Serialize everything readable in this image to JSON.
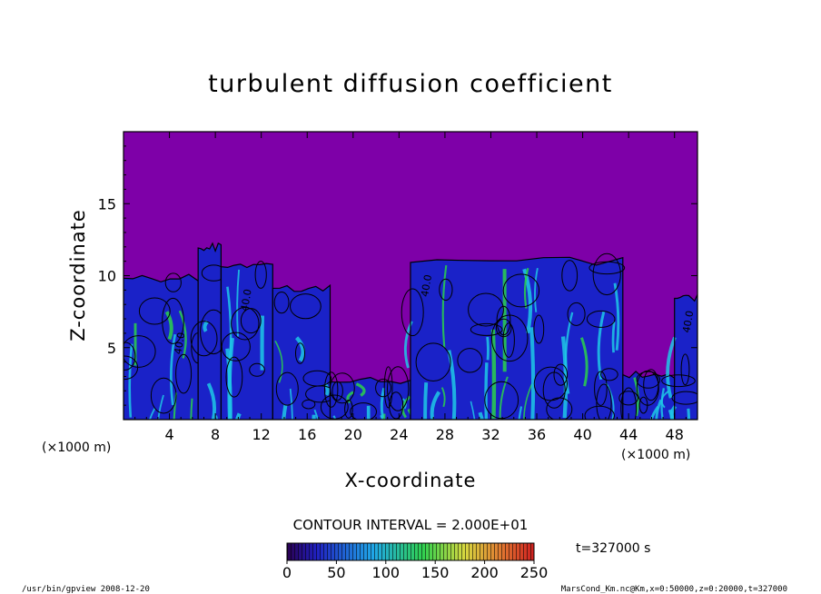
{
  "chart_data": {
    "type": "heatmap",
    "title": "turbulent diffusion coefficient",
    "xlabel": "X-coordinate",
    "ylabel": "Z-coordinate",
    "x_unit": "(×1000 m)",
    "y_unit": "(×1000 m)",
    "xlim": [
      0,
      50
    ],
    "ylim": [
      0,
      20
    ],
    "x_ticks": [
      "4",
      "8",
      "12",
      "16",
      "20",
      "24",
      "28",
      "32",
      "36",
      "40",
      "44",
      "48"
    ],
    "x_tick_values": [
      4,
      8,
      12,
      16,
      20,
      24,
      28,
      32,
      36,
      40,
      44,
      48
    ],
    "y_ticks": [
      "5",
      "10",
      "15"
    ],
    "y_tick_values": [
      5,
      10,
      15
    ],
    "background_value": 0,
    "contour_interval_text": "CONTOUR INTERVAL = 2.000E+01",
    "contour_labels": [
      {
        "text": "40.0",
        "x": 5.0,
        "z": 4.5
      },
      {
        "text": "40.0",
        "x": 10.8,
        "z": 7.5
      },
      {
        "text": "40.0",
        "x": 26.5,
        "z": 8.5
      },
      {
        "text": "40.0",
        "x": 49.3,
        "z": 6.0
      }
    ],
    "turbulent_regions": [
      {
        "x0": 0.0,
        "x1": 6.5,
        "top": 10.2
      },
      {
        "x0": 6.5,
        "x1": 8.5,
        "top": 12.3
      },
      {
        "x0": 8.5,
        "x1": 13.0,
        "top": 11.0
      },
      {
        "x0": 13.0,
        "x1": 18.0,
        "top": 9.5
      },
      {
        "x0": 18.0,
        "x1": 25.0,
        "top": 3.0
      },
      {
        "x0": 25.0,
        "x1": 43.5,
        "top": 11.3
      },
      {
        "x0": 43.5,
        "x1": 48.0,
        "top": 3.5
      },
      {
        "x0": 48.0,
        "x1": 50.0,
        "top": 8.8
      }
    ],
    "colorbar": {
      "ticks": [
        "0",
        "50",
        "100",
        "150",
        "200",
        "250"
      ],
      "tick_values": [
        0,
        50,
        100,
        150,
        200,
        250
      ],
      "range": [
        0,
        250
      ]
    },
    "time_label": "t=327000 s"
  },
  "footer": {
    "left": "/usr/bin/gpview   2008-12-20",
    "right": "MarsCond_Km.nc@Km,x=0:50000,z=0:20000,t=327000"
  },
  "colors": {
    "background_fill": "#7e00a8",
    "low": "#1a22c8",
    "mid": "#1ec8e6",
    "high": "#2cd24a",
    "contour_line": "#000000"
  }
}
